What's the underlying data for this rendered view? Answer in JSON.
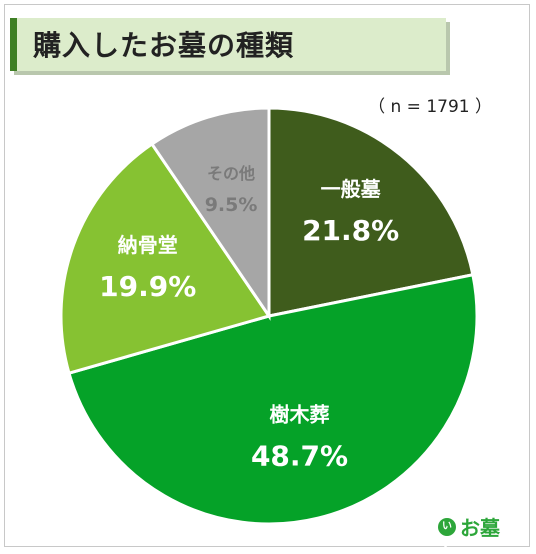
{
  "chart_data": {
    "type": "pie",
    "title": "購入したお墓の種類",
    "note": "（ n = 1791 ）",
    "slices": [
      {
        "label": "一般墓",
        "value": 21.8,
        "value_label": "21.8%",
        "color": "#3f5c1c",
        "text_color": "#ffffff"
      },
      {
        "label": "樹木葬",
        "value": 48.7,
        "value_label": "48.7%",
        "color": "#05a228",
        "text_color": "#ffffff"
      },
      {
        "label": "納骨堂",
        "value": 19.9,
        "value_label": "19.9%",
        "color": "#86c232",
        "text_color": "#ffffff"
      },
      {
        "label": "その他",
        "value": 9.5,
        "value_label": "9.5%",
        "color": "#a6a6a6",
        "text_color": "#7a7a7a"
      }
    ],
    "start_angle_deg": 0,
    "direction": "clockwise"
  },
  "brand": {
    "mark": "いい",
    "text": "お墓",
    "color": "#2da63a"
  }
}
